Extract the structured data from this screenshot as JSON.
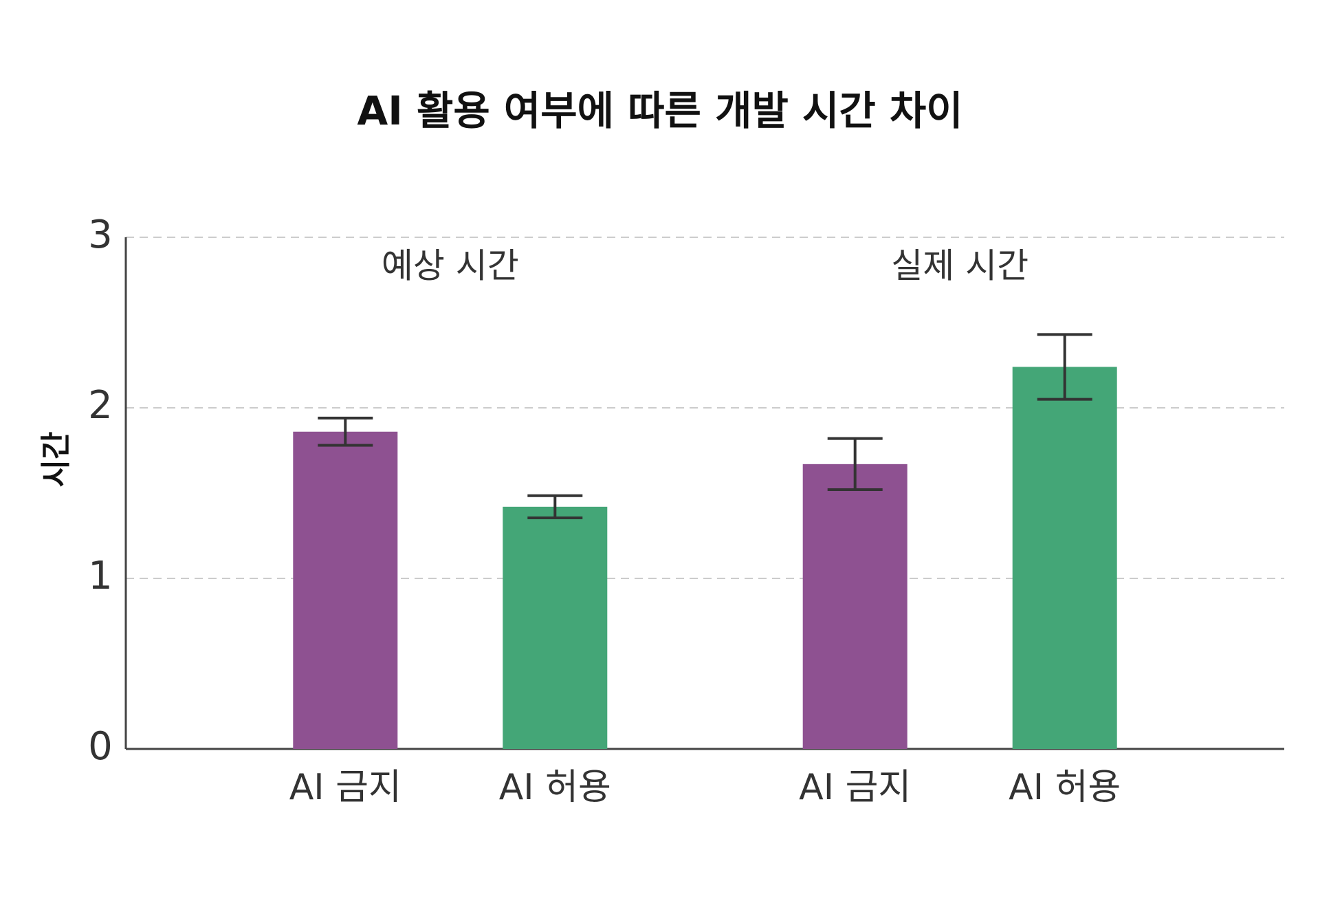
{
  "chart_data": {
    "type": "bar",
    "title": "AI 활용 여부에 따른 개발 시간 차이",
    "y_label": "시간",
    "categories": [
      "예상 시간",
      "실제 시간"
    ],
    "series": [
      {
        "name": "AI 금지",
        "color": "#8e5191",
        "values": [
          1.86,
          1.67
        ],
        "errors": [
          0.08,
          0.15
        ]
      },
      {
        "name": "AI 허용",
        "color": "#44a677",
        "values": [
          1.42,
          2.24
        ],
        "errors": [
          0.065,
          0.19
        ]
      }
    ],
    "ylim": [
      0,
      3
    ],
    "yticks": [
      0,
      1,
      2,
      3
    ],
    "grid": true
  }
}
